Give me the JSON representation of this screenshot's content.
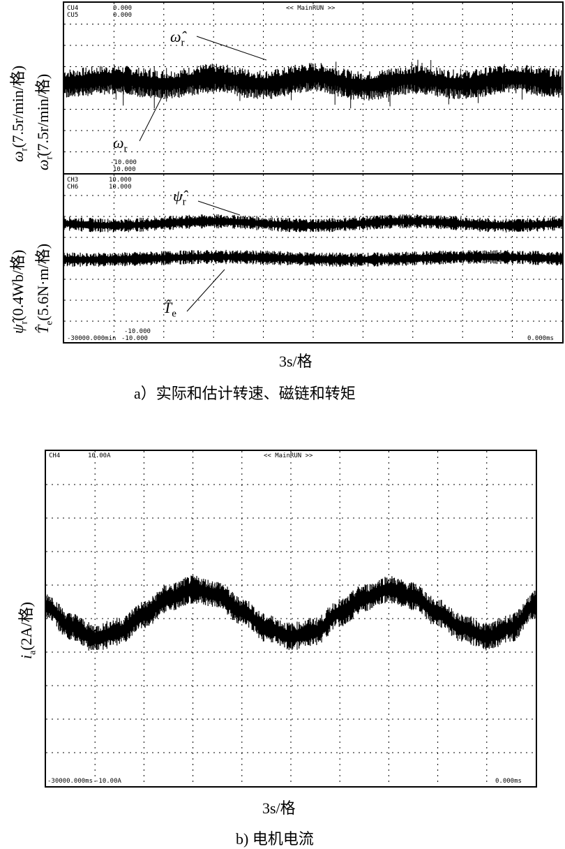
{
  "figure_a": {
    "caption": "a）实际和估计转速、磁链和转矩",
    "xlabel": "3s/格",
    "upper_panel": {
      "ylabel_1": "ω_r(7.5r/min/格)",
      "ylabel_2": "ω̂_r(7.5r/min/格)",
      "ylabel_1_text": "(7.5r/min/格)",
      "ylabel_2_text": "(7.5r/min/格)",
      "ch_top_1": "CU4",
      "ch_top_2": "CU5",
      "top_val_1": "0.000",
      "top_val_2": "0.000",
      "bottom_val_1": "-10.000",
      "bottom_val_2": "10.000",
      "header": "<< MainRUN >>",
      "label_est": "ω̂r",
      "label_act": "ωr"
    },
    "lower_panel": {
      "ylabel_1_text": "(0.4Wb/格)",
      "ylabel_2_text": "(5.6N·m/格)",
      "ch_top_1": "CH3",
      "ch_top_2": "CH6",
      "top_val_1": "10.000",
      "top_val_2": "10.000",
      "bottom_left": "-30000.000min",
      "bottom_val_1": "-10.000",
      "bottom_val_2": "-10.000",
      "bottom_right": "0.000ms",
      "label_flux": "ψ̂r",
      "label_torque": "T̂e"
    }
  },
  "figure_b": {
    "caption": "b) 电机电流",
    "xlabel": "3s/格",
    "ylabel_text": "(2A/格)",
    "channel": "CH4",
    "scale": "10.00A",
    "header": "<< MainRUN >>",
    "bottom_left": "-30000.000ms",
    "bottom_val": "-10.00A",
    "bottom_right": "0.000ms"
  },
  "chart_data": [
    {
      "type": "line",
      "title": "",
      "xlabel": "3s/格",
      "ylabel": "ω_r, ω̂_r (7.5r/min/格)",
      "xlim": [
        0,
        30
      ],
      "series": [
        {
          "name": "ω̂r",
          "x": [
            0,
            3,
            6,
            9,
            12,
            15,
            18,
            21,
            24,
            27,
            30
          ],
          "values": [
            0.3,
            0.6,
            0.2,
            0.7,
            0.2,
            0.8,
            0.1,
            0.6,
            0.2,
            0.7,
            0.3
          ]
        },
        {
          "name": "ωr",
          "x": [
            0,
            3,
            6,
            9,
            12,
            15,
            18,
            21,
            24,
            27,
            30
          ],
          "values": [
            0.2,
            0.5,
            0.1,
            0.6,
            0.1,
            0.7,
            0.0,
            0.5,
            0.1,
            0.6,
            0.2
          ]
        }
      ]
    },
    {
      "type": "line",
      "title": "",
      "xlabel": "3s/格",
      "ylabel": "ψ̂r(0.4Wb/格), T̂e(5.6N·m/格)",
      "xlim": [
        0,
        30
      ],
      "series": [
        {
          "name": "ψ̂r",
          "x": [
            0,
            30
          ],
          "values": [
            1.0,
            1.0
          ]
        },
        {
          "name": "T̂e",
          "x": [
            0,
            30
          ],
          "values": [
            0.0,
            0.0
          ]
        }
      ]
    },
    {
      "type": "line",
      "title": "",
      "xlabel": "3s/格",
      "ylabel": "i_a(2A/格)",
      "xlim": [
        0,
        30
      ],
      "ylim": [
        -10,
        10
      ],
      "series": [
        {
          "name": "ia",
          "x": [
            0,
            1.5,
            3,
            4.5,
            6,
            7.5,
            9,
            10.5,
            12,
            13.5,
            15,
            16.5,
            18,
            19.5,
            21,
            22.5,
            24,
            25.5,
            27,
            28.5,
            30
          ],
          "values": [
            0.9,
            -0.3,
            -1.0,
            -0.6,
            0.4,
            1.4,
            1.9,
            1.6,
            0.6,
            -0.4,
            -0.9,
            -0.6,
            0.5,
            1.4,
            1.9,
            1.5,
            0.5,
            -0.4,
            -0.9,
            -0.4,
            1.0
          ]
        }
      ]
    }
  ]
}
